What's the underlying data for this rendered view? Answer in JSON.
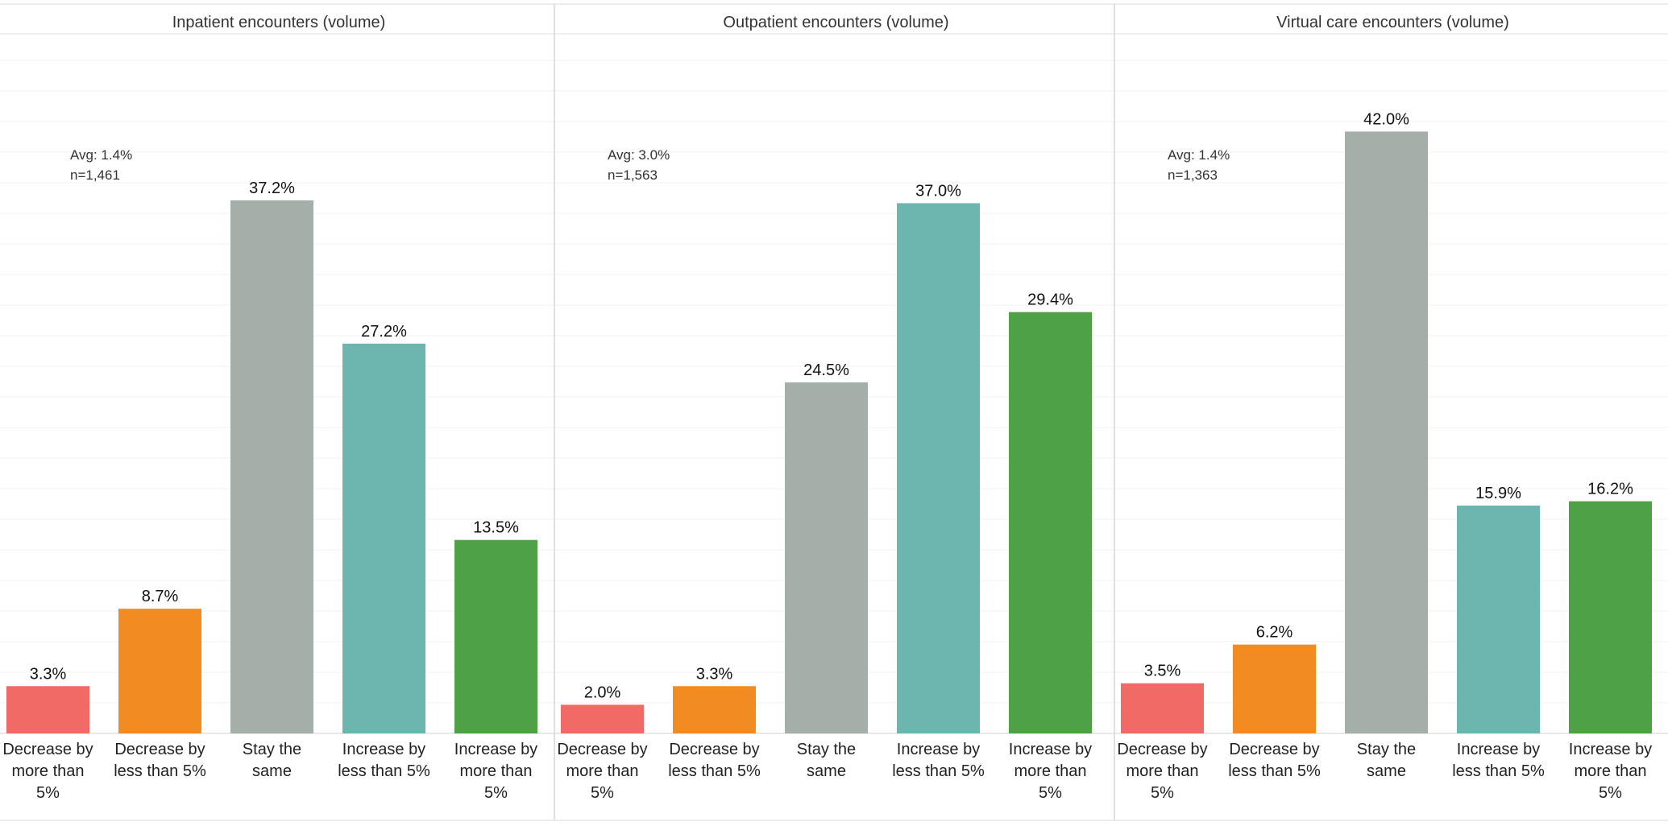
{
  "chart_data": [
    {
      "type": "bar",
      "title": "Inpatient encounters (volume)",
      "categories": [
        "Decrease by more than 5%",
        "Decrease by less than 5%",
        "Stay the same",
        "Increase by less than 5%",
        "Increase by more than 5%"
      ],
      "values": [
        3.3,
        8.7,
        37.2,
        27.2,
        13.5
      ],
      "value_labels": [
        "3.3%",
        "8.7%",
        "37.2%",
        "27.2%",
        "13.5%"
      ],
      "notes": [
        "Avg: 1.4%",
        "n=1,461"
      ],
      "ylim": [
        0,
        45
      ],
      "grid": true
    },
    {
      "type": "bar",
      "title": "Outpatient encounters (volume)",
      "categories": [
        "Decrease by more than 5%",
        "Decrease by less than 5%",
        "Stay the same",
        "Increase by less than 5%",
        "Increase by more than 5%"
      ],
      "values": [
        2.0,
        3.3,
        24.5,
        37.0,
        29.4
      ],
      "value_labels": [
        "2.0%",
        "3.3%",
        "24.5%",
        "37.0%",
        "29.4%"
      ],
      "notes": [
        "Avg: 3.0%",
        "n=1,563"
      ],
      "ylim": [
        0,
        45
      ],
      "grid": true
    },
    {
      "type": "bar",
      "title": "Virtual care encounters (volume)",
      "categories": [
        "Decrease by more than 5%",
        "Decrease by less than 5%",
        "Stay the same",
        "Increase by less than 5%",
        "Increase by more than 5%"
      ],
      "values": [
        3.5,
        6.2,
        42.0,
        15.9,
        16.2
      ],
      "value_labels": [
        "3.5%",
        "6.2%",
        "42.0%",
        "15.9%",
        "16.2%"
      ],
      "notes": [
        "Avg: 1.4%",
        "n=1,363"
      ],
      "ylim": [
        0,
        45
      ],
      "grid": true
    }
  ],
  "category_colors": [
    "#F06B65",
    "#F28B22",
    "#A4AFA9",
    "#6DB5AF",
    "#4FA146"
  ],
  "category_label_lines": [
    [
      "Decrease by",
      "more than",
      "5%"
    ],
    [
      "Decrease by",
      "less than 5%"
    ],
    [
      "Stay the",
      "same"
    ],
    [
      "Increase by",
      "less than 5%"
    ],
    [
      "Increase by",
      "more than",
      "5%"
    ]
  ]
}
